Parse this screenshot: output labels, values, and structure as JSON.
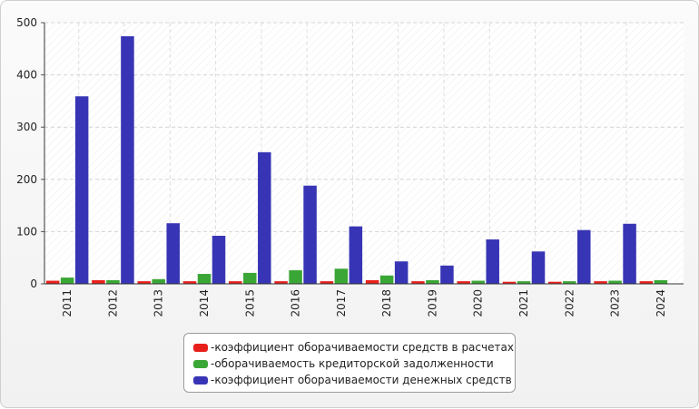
{
  "chart_data": {
    "type": "bar",
    "categories": [
      "2011",
      "2012",
      "2013",
      "2014",
      "2015",
      "2016",
      "2017",
      "2018",
      "2019",
      "2020",
      "2021",
      "2022",
      "2023",
      "2024"
    ],
    "series": [
      {
        "name": "коэффициент оборачиваемости средств в расчетах",
        "color": "#e8201c",
        "values": [
          6,
          7,
          5,
          5,
          5,
          5,
          5,
          7,
          5,
          5,
          4,
          4,
          5,
          5
        ]
      },
      {
        "name": "оборачиваемость кредиторской задолженности",
        "color": "#3aa635",
        "values": [
          12,
          7,
          9,
          19,
          21,
          26,
          29,
          16,
          7,
          6,
          5,
          5,
          6,
          7
        ]
      },
      {
        "name": "коэффициент оборачиваемости денежных средств",
        "color": "#3735b5",
        "values": [
          359,
          474,
          116,
          92,
          252,
          188,
          110,
          43,
          35,
          85,
          62,
          103,
          115,
          0
        ]
      }
    ],
    "yticks": [
      "0",
      "100",
      "200",
      "300",
      "400",
      "500"
    ],
    "ylim": [
      0,
      500
    ],
    "grid": true,
    "legend_position": "bottom",
    "legend_prefix": "- "
  }
}
